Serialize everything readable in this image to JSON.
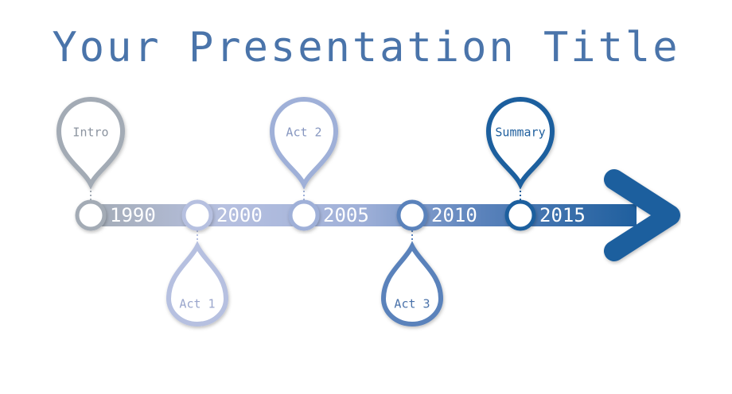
{
  "title": "Your Presentation Title",
  "milestones": [
    {
      "year": "1990",
      "label": "Intro",
      "side": "top",
      "color": "#a3abb5",
      "text_color": "#8c94a0"
    },
    {
      "year": "2000",
      "label": "Act 1",
      "side": "bottom",
      "color": "#b6c0e0",
      "text_color": "#9aa6cc"
    },
    {
      "year": "2005",
      "label": "Act 2",
      "side": "top",
      "color": "#9fb0d8",
      "text_color": "#8797c0"
    },
    {
      "year": "2010",
      "label": "Act 3",
      "side": "bottom",
      "color": "#5a82bb",
      "text_color": "#4a72aa"
    },
    {
      "year": "2015",
      "label": "Summary",
      "side": "top",
      "color": "#1f5f9e",
      "text_color": "#1f5f9e"
    }
  ],
  "colors": {
    "title": "#4a74aa",
    "arrow": "#1f5f9e"
  }
}
